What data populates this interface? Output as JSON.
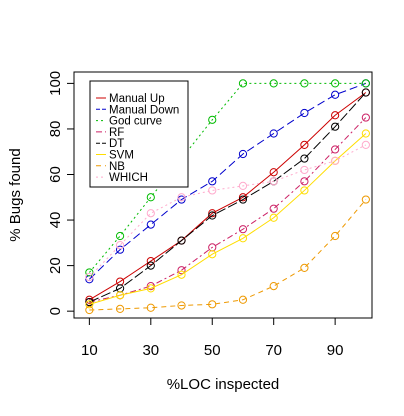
{
  "chart_data": {
    "type": "line",
    "xlabel": "%LOC inspected",
    "ylabel": "% Bugs found",
    "xlim": [
      5,
      102
    ],
    "ylim": [
      -3,
      105
    ],
    "x": [
      10,
      20,
      30,
      40,
      50,
      60,
      70,
      80,
      90,
      100
    ],
    "xticks": [
      10,
      30,
      50,
      70,
      90
    ],
    "yticks": [
      0,
      20,
      40,
      60,
      80,
      100
    ],
    "legend_position": "top-left",
    "grid": false,
    "series": [
      {
        "name": "Manual Up",
        "color": "#cc0000",
        "dash": "solid",
        "values": [
          5,
          13,
          22,
          31,
          43,
          50,
          61,
          73,
          86,
          96
        ]
      },
      {
        "name": "Manual Down",
        "color": "#0000cc",
        "dash": "long",
        "values": [
          14,
          27,
          38,
          49,
          57,
          69,
          78,
          87,
          95,
          100
        ]
      },
      {
        "name": "God curve",
        "color": "#00bb00",
        "dash": "dotted",
        "values": [
          17,
          33,
          50,
          67,
          84,
          100,
          100,
          100,
          100,
          100
        ]
      },
      {
        "name": "RF",
        "color": "#cc2266",
        "dash": "dashdot",
        "values": [
          4,
          7,
          11,
          18,
          28,
          36,
          45,
          57,
          71,
          85
        ]
      },
      {
        "name": "DT",
        "color": "#000000",
        "dash": "longdash",
        "values": [
          4,
          10,
          20,
          31,
          42,
          49,
          57,
          67,
          81,
          96
        ]
      },
      {
        "name": "SVM",
        "color": "#ffdd00",
        "dash": "solid",
        "values": [
          3,
          7,
          10,
          16,
          25,
          32,
          41,
          53,
          66,
          78
        ]
      },
      {
        "name": "NB",
        "color": "#ee9900",
        "dash": "dash",
        "values": [
          0.5,
          1,
          1.5,
          2.5,
          3,
          5,
          11,
          19,
          33,
          49
        ]
      },
      {
        "name": "WHICH",
        "color": "#ffaacc",
        "dash": "dotted",
        "values": [
          15,
          29,
          43,
          50,
          53,
          55,
          57,
          62,
          66,
          73
        ]
      }
    ]
  }
}
